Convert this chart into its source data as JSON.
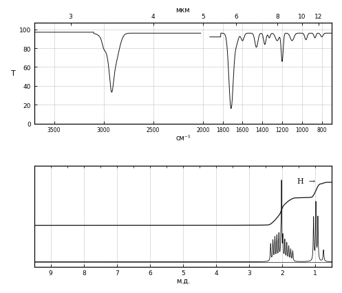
{
  "ir_ylabel": "T",
  "ir_top_label": "мкм",
  "ir_bottom_label": "см⁻¹",
  "ir_top_ticks": [
    3,
    4,
    5,
    6,
    8,
    10,
    12
  ],
  "ir_bottom_ticks": [
    3500,
    3000,
    2500,
    2000,
    1800,
    1600,
    1400,
    1200,
    1000,
    800
  ],
  "ir_yticks": [
    0,
    20,
    40,
    60,
    80,
    100
  ],
  "nmr_xlabel": "м.д.",
  "nmr_xticks": [
    9,
    8,
    7,
    6,
    5,
    4,
    3,
    2,
    1
  ],
  "nmr_annotation": "H",
  "bg": "#ffffff",
  "lc": "#111111",
  "gc": "#999999"
}
